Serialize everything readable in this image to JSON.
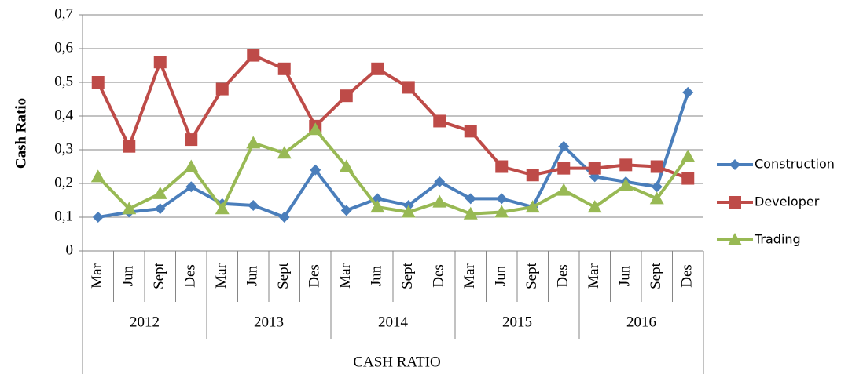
{
  "chart_data": {
    "type": "line",
    "y_label": "Cash Ratio",
    "x_label": "CASH RATIO",
    "categories": [
      "Mar",
      "Jun",
      "Sept",
      "Des",
      "Mar",
      "Jun",
      "Sept",
      "Des",
      "Mar",
      "Jun",
      "Sept",
      "Des",
      "Mar",
      "Jun",
      "Sept",
      "Des",
      "Mar",
      "Jun",
      "Sept",
      "Des"
    ],
    "years": [
      "2012",
      "2013",
      "2014",
      "2015",
      "2016"
    ],
    "ylim": [
      0,
      0.7
    ],
    "yticks": [
      0,
      {
        "value": 0.1,
        "label": "0,1"
      },
      {
        "value": 0.2,
        "label": "0,2"
      },
      {
        "value": 0.3,
        "label": "0,3"
      },
      {
        "value": 0.4,
        "label": "0,4"
      },
      {
        "value": 0.5,
        "label": "0,5"
      },
      {
        "value": 0.6,
        "label": "0,6"
      },
      {
        "value": 0.7,
        "label": "0,7"
      }
    ],
    "grid": true,
    "legend": "right",
    "series": [
      {
        "name": "Construction",
        "color": "#4a7ebb",
        "marker": "diamond",
        "values": [
          0.1,
          0.115,
          0.125,
          0.19,
          0.14,
          0.135,
          0.1,
          0.24,
          0.12,
          0.155,
          0.135,
          0.205,
          0.155,
          0.155,
          0.13,
          0.31,
          0.22,
          0.205,
          0.19,
          0.47
        ]
      },
      {
        "name": "Developer",
        "color": "#be4b48",
        "marker": "square",
        "values": [
          0.5,
          0.31,
          0.56,
          0.33,
          0.48,
          0.58,
          0.54,
          0.37,
          0.46,
          0.54,
          0.485,
          0.385,
          0.355,
          0.25,
          0.225,
          0.245,
          0.245,
          0.255,
          0.25,
          0.215
        ]
      },
      {
        "name": "Trading",
        "color": "#98b954",
        "marker": "triangle",
        "values": [
          0.22,
          0.125,
          0.17,
          0.25,
          0.125,
          0.32,
          0.29,
          0.36,
          0.25,
          0.13,
          0.115,
          0.145,
          0.11,
          0.115,
          0.13,
          0.18,
          0.13,
          0.195,
          0.155,
          0.28
        ]
      }
    ]
  }
}
